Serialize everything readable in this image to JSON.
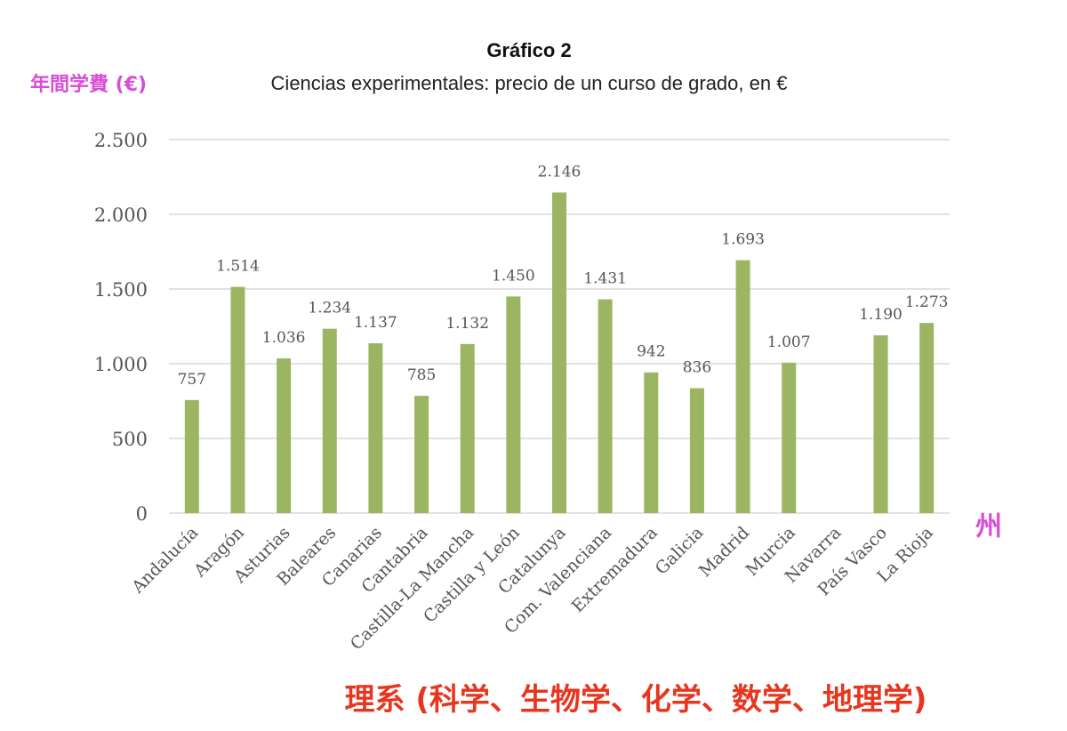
{
  "chart_data": {
    "type": "bar",
    "title": "Gráfico 2",
    "subtitle": "Ciencias experimentales: precio de un curso de grado, en €",
    "ylim": [
      0,
      2500
    ],
    "yticks": [
      0,
      500,
      1000,
      1500,
      2000,
      2500
    ],
    "ytick_labels": [
      "0",
      "500",
      "1.000",
      "1.500",
      "2.000",
      "2.500"
    ],
    "grid": true,
    "bar_color": "#9bb562",
    "categories": [
      "Andalucía",
      "Aragón",
      "Asturias",
      "Baleares",
      "Canarias",
      "Cantabria",
      "Castilla-La Mancha",
      "Castilla y León",
      "Catalunya",
      "Com. Valenciana",
      "Extremadura",
      "Galicia",
      "Madrid",
      "Murcia",
      "Navarra",
      "País Vasco",
      "La Rioja"
    ],
    "values": [
      757,
      1514,
      1036,
      1234,
      1137,
      785,
      1132,
      1450,
      2146,
      1431,
      942,
      836,
      1693,
      1007,
      null,
      1190,
      1273
    ],
    "data_labels": [
      "757",
      "1.514",
      "1.036",
      "1.234",
      "1.137",
      "785",
      "1.132",
      "1.450",
      "2.146",
      "1.431",
      "942",
      "836",
      "1.693",
      "1.007",
      "",
      "1.190",
      "1.273"
    ]
  },
  "annotations": {
    "y_note": "年間学費 (€)",
    "x_note": "州",
    "caption": "理系 (科学、生物学、化学、数学、地理学)"
  }
}
